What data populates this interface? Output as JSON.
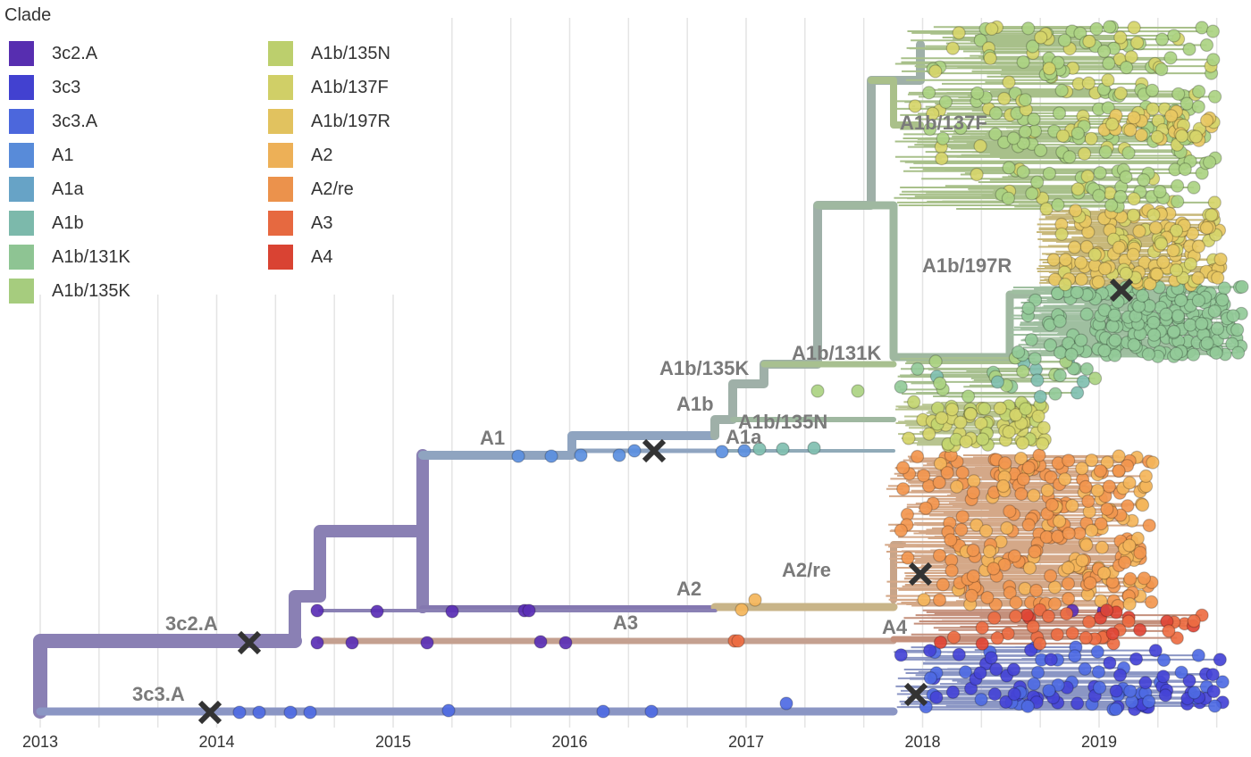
{
  "legend": {
    "title": "Clade",
    "items": [
      {
        "label": "3c2.A",
        "color": "#5a2fb5"
      },
      {
        "label": "3c3",
        "color": "#4443d6"
      },
      {
        "label": "3c3.A",
        "color": "#4e6ae3"
      },
      {
        "label": "A1",
        "color": "#5b8fe0"
      },
      {
        "label": "A1a",
        "color": "#6aa8cc"
      },
      {
        "label": "A1b",
        "color": "#80bfb0"
      },
      {
        "label": "A1b/131K",
        "color": "#92ca98"
      },
      {
        "label": "A1b/135K",
        "color": "#abd282"
      },
      {
        "label": "A1b/135N",
        "color": "#c2d570"
      },
      {
        "label": "A1b/137F",
        "color": "#d6d56a"
      },
      {
        "label": "A1b/197R",
        "color": "#e8c862"
      },
      {
        "label": "A2",
        "color": "#f4b55a"
      },
      {
        "label": "A2/re",
        "color": "#f2964e"
      },
      {
        "label": "A3",
        "color": "#ed6c42"
      },
      {
        "label": "A4",
        "color": "#e04535"
      }
    ]
  },
  "axis": {
    "ticks": [
      "2013",
      "2014",
      "2015",
      "2016",
      "2017",
      "2018",
      "2019"
    ]
  },
  "clade_labels": [
    "3c2.A",
    "3c3.A",
    "A1",
    "A1b",
    "A1a",
    "A1b/135N",
    "A1b/135K",
    "A1b/131K",
    "A1b/137F",
    "A1b/197R",
    "A2",
    "A2/re",
    "A3",
    "A4"
  ],
  "colors": {
    "trunk": "#8a80b4",
    "grid": "#e4e4e4",
    "label": "#7a7a7a",
    "marker": "#333333"
  }
}
